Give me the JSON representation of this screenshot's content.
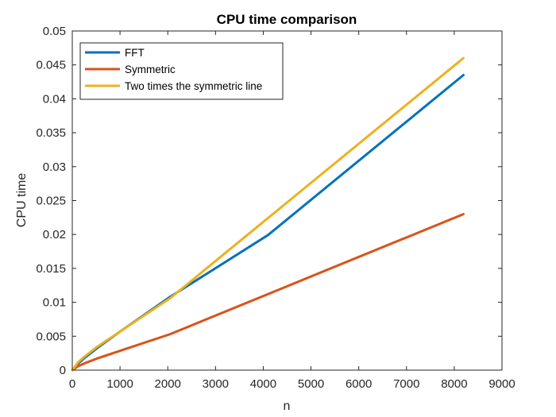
{
  "chart_data": {
    "type": "line",
    "title": "CPU time comparison",
    "xlabel": "n",
    "ylabel": "CPU time",
    "xlim": [
      0,
      9000
    ],
    "ylim": [
      0,
      0.05
    ],
    "xticks": [
      0,
      1000,
      2000,
      3000,
      4000,
      5000,
      6000,
      7000,
      8000,
      9000
    ],
    "yticks": [
      0,
      0.005,
      0.01,
      0.015,
      0.02,
      0.025,
      0.03,
      0.035,
      0.04,
      0.045,
      0.05
    ],
    "xtick_labels": [
      "0",
      "1000",
      "2000",
      "3000",
      "4000",
      "5000",
      "6000",
      "7000",
      "8000",
      "9000"
    ],
    "ytick_labels": [
      "0",
      "0.005",
      "0.01",
      "0.015",
      "0.02",
      "0.025",
      "0.03",
      "0.035",
      "0.04",
      "0.045",
      "0.05"
    ],
    "grid": false,
    "legend_position": "top-left",
    "series": [
      {
        "name": "FFT",
        "color": "#0072BD",
        "x": [
          0,
          64,
          128,
          256,
          512,
          1024,
          2048,
          4096,
          8192
        ],
        "y": [
          0,
          0.0005,
          0.001,
          0.0018,
          0.0032,
          0.0058,
          0.0108,
          0.0199,
          0.0435
        ]
      },
      {
        "name": "Symmetric",
        "color": "#D95319",
        "x": [
          0,
          64,
          128,
          256,
          512,
          1024,
          2048,
          4096,
          8192
        ],
        "y": [
          0,
          0.0003,
          0.0006,
          0.001,
          0.0017,
          0.0029,
          0.0053,
          0.0112,
          0.023
        ]
      },
      {
        "name": "Two times the symmetric line",
        "color": "#EDB120",
        "x": [
          0,
          64,
          128,
          256,
          512,
          1024,
          2048,
          4096,
          8192
        ],
        "y": [
          0,
          0.0006,
          0.0012,
          0.002,
          0.0034,
          0.0058,
          0.0106,
          0.0224,
          0.046
        ]
      }
    ]
  }
}
